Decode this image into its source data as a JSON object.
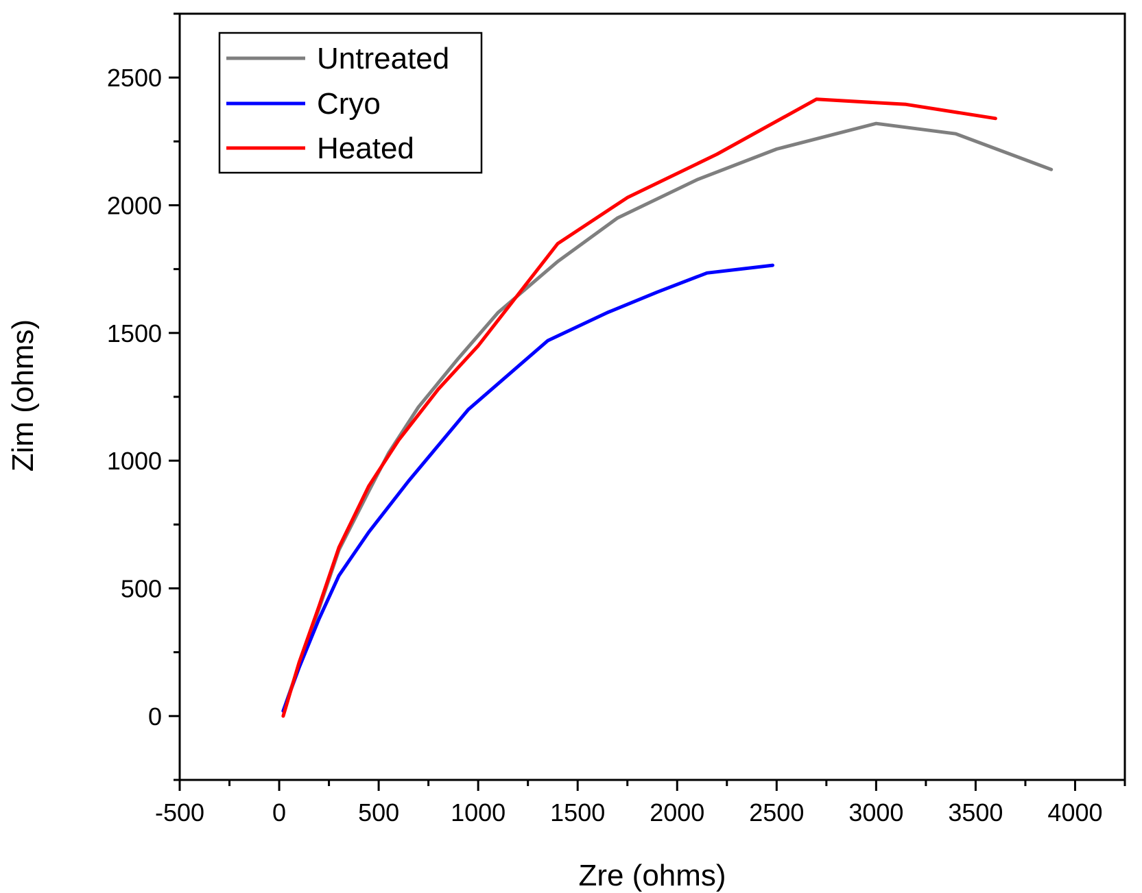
{
  "chart_data": {
    "type": "line",
    "title": "",
    "xlabel": "Zre (ohms)",
    "ylabel": "Zim (ohms)",
    "xlim": [
      -500,
      4250
    ],
    "ylim": [
      -250,
      2750
    ],
    "grid": false,
    "legend_position": "top-left",
    "x_ticks": [
      -500,
      0,
      500,
      1000,
      1500,
      2000,
      2500,
      3000,
      3500,
      4000
    ],
    "x_tick_labels": [
      "-500",
      "0",
      "500",
      "1000",
      "1500",
      "2000",
      "2500",
      "3000",
      "3500",
      "4000"
    ],
    "y_ticks": [
      0,
      500,
      1000,
      1500,
      2000,
      2500
    ],
    "y_tick_labels": [
      "0",
      "500",
      "1000",
      "1500",
      "2000",
      "2500"
    ],
    "series": [
      {
        "name": "Untreated",
        "color": "#7f7f7f",
        "x": [
          20,
          100,
          200,
          300,
          450,
          550,
          700,
          900,
          1100,
          1400,
          1700,
          2100,
          2500,
          3000,
          3400,
          3880
        ],
        "y": [
          20,
          200,
          420,
          650,
          880,
          1030,
          1210,
          1400,
          1580,
          1780,
          1950,
          2100,
          2220,
          2320,
          2280,
          2140
        ]
      },
      {
        "name": "Cryo",
        "color": "#0000ff",
        "x": [
          20,
          100,
          200,
          300,
          450,
          650,
          950,
          1350,
          1650,
          1900,
          2150,
          2480
        ],
        "y": [
          20,
          190,
          380,
          550,
          720,
          920,
          1200,
          1470,
          1580,
          1660,
          1735,
          1765
        ]
      },
      {
        "name": "Heated",
        "color": "#ff0000",
        "x": [
          20,
          100,
          200,
          300,
          450,
          600,
          800,
          1000,
          1150,
          1400,
          1750,
          2200,
          2700,
          3150,
          3600
        ],
        "y": [
          0,
          210,
          430,
          660,
          900,
          1080,
          1280,
          1450,
          1600,
          1850,
          2030,
          2200,
          2415,
          2395,
          2340
        ]
      }
    ]
  }
}
